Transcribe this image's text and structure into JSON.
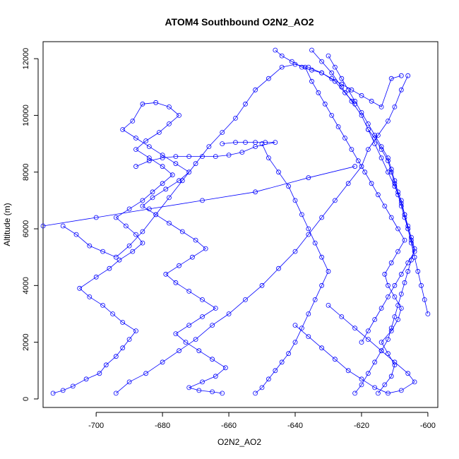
{
  "chart_data": {
    "type": "line",
    "title": "ATOM4 Southbound O2N2_AO2",
    "xlabel": "O2N2_AO2",
    "ylabel": "Altitude (m)",
    "xlim": [
      -716,
      -597
    ],
    "ylim": [
      -300,
      12600
    ],
    "x_ticks": [
      -700,
      -680,
      -660,
      -640,
      -620,
      -600
    ],
    "y_ticks": [
      0,
      2000,
      4000,
      6000,
      8000,
      10000,
      12000
    ],
    "grid": false,
    "legend": "none",
    "marker": "open-circle",
    "colors": {
      "series": "#0000ff",
      "axes": "#000000"
    },
    "series": [
      {
        "profile": "left-ascending-arm",
        "x": [
          -713,
          -710,
          -707,
          -703,
          -699,
          -697,
          -694,
          -692,
          -690,
          -688,
          -692,
          -695,
          -698,
          -702,
          -705,
          -700,
          -696,
          -693,
          -689,
          -686,
          -688,
          -691,
          -694,
          -690,
          -686,
          -683,
          -680,
          -677,
          -680,
          -684,
          -688,
          -685,
          -681,
          -678,
          -675,
          -678,
          -682,
          -686,
          -689,
          -692,
          -688,
          -684,
          -680,
          -676,
          -672,
          -675,
          -679,
          -683,
          -686,
          -682,
          -678,
          -674,
          -670,
          -667,
          -671,
          -675,
          -679,
          -676,
          -672,
          -668,
          -664,
          -668,
          -672,
          -676,
          -673,
          -669,
          -665,
          -661,
          -664,
          -668,
          -672,
          -669,
          -665,
          -662
        ],
        "y": [
          200,
          300,
          450,
          700,
          900,
          1200,
          1500,
          1800,
          2100,
          2400,
          2700,
          3000,
          3300,
          3600,
          3900,
          4300,
          4600,
          4900,
          5200,
          5500,
          5800,
          6100,
          6400,
          6700,
          7000,
          7300,
          7600,
          7900,
          8200,
          8500,
          8800,
          9100,
          9400,
          9700,
          10000,
          10300,
          10450,
          10400,
          9800,
          9500,
          9200,
          8900,
          8600,
          8300,
          8000,
          7700,
          7400,
          7100,
          6800,
          6500,
          6200,
          5900,
          5600,
          5300,
          5000,
          4700,
          4400,
          4100,
          3800,
          3500,
          3200,
          2900,
          2600,
          2300,
          2000,
          1700,
          1400,
          1100,
          800,
          600,
          400,
          300,
          250,
          200
        ]
      },
      {
        "profile": "left-mid-crossing",
        "x": [
          -694,
          -690,
          -685,
          -680,
          -675,
          -670,
          -665,
          -660,
          -655,
          -650,
          -645,
          -640,
          -636,
          -632,
          -628,
          -624,
          -620,
          -618,
          -615,
          -612,
          -610,
          -608,
          -606
        ],
        "y": [
          200,
          600,
          900,
          1300,
          1700,
          2100,
          2600,
          3000,
          3500,
          4000,
          4600,
          5200,
          5800,
          6400,
          7000,
          7600,
          8200,
          8800,
          9300,
          9800,
          10300,
          10900,
          11400
        ]
      },
      {
        "profile": "upper-left-arc",
        "x": [
          -710,
          -706,
          -702,
          -698,
          -694,
          -690,
          -686,
          -682,
          -678,
          -674,
          -670,
          -666,
          -662,
          -658,
          -655,
          -652,
          -648,
          -644,
          -640,
          -636,
          -632,
          -628,
          -625,
          -622
        ],
        "y": [
          6100,
          5800,
          5400,
          5200,
          5000,
          5400,
          5900,
          6500,
          7100,
          7700,
          8300,
          8900,
          9400,
          9900,
          10400,
          10900,
          11300,
          11700,
          11800,
          11700,
          11500,
          11200,
          10800,
          10400
        ]
      },
      {
        "profile": "upper-left-shelf",
        "x": [
          -662,
          -658,
          -655,
          -652,
          -649,
          -646,
          -652,
          -656,
          -660,
          -664,
          -668,
          -672,
          -676,
          -680,
          -684,
          -688
        ],
        "y": [
          9000,
          9050,
          9050,
          9050,
          9050,
          9050,
          8900,
          8700,
          8600,
          8550,
          8550,
          8550,
          8550,
          8500,
          8400,
          8200
        ]
      },
      {
        "profile": "center-descent",
        "x": [
          -650,
          -648,
          -645,
          -642,
          -640,
          -638,
          -636,
          -634,
          -632,
          -630,
          -632,
          -634,
          -636,
          -638,
          -640,
          -642,
          -644,
          -646,
          -648,
          -650,
          -652
        ],
        "y": [
          9000,
          8500,
          8000,
          7500,
          7000,
          6500,
          6000,
          5500,
          5000,
          4500,
          4000,
          3500,
          3000,
          2500,
          2000,
          1600,
          1300,
          1000,
          700,
          400,
          200
        ]
      },
      {
        "profile": "center-left-link",
        "x": [
          -716,
          -700,
          -684,
          -668,
          -652,
          -636,
          -622
        ],
        "y": [
          6100,
          6400,
          6700,
          7000,
          7300,
          7800,
          8200
        ]
      },
      {
        "profile": "right-column-a",
        "x": [
          -615,
          -613,
          -611,
          -610,
          -612,
          -614,
          -611,
          -609,
          -608,
          -610,
          -612,
          -613,
          -611,
          -609,
          -607,
          -609,
          -611,
          -613,
          -615,
          -617,
          -619,
          -621,
          -623,
          -625,
          -627,
          -629,
          -631,
          -633,
          -635,
          -637
        ],
        "y": [
          200,
          500,
          800,
          1200,
          1600,
          2000,
          2400,
          2800,
          3200,
          3600,
          4000,
          4400,
          4800,
          5200,
          5600,
          6000,
          6400,
          6800,
          7200,
          7600,
          8000,
          8400,
          8800,
          9200,
          9600,
          10000,
          10400,
          10800,
          11200,
          11700
        ]
      },
      {
        "profile": "right-column-b",
        "x": [
          -622,
          -620,
          -618,
          -616,
          -614,
          -612,
          -611,
          -610,
          -609,
          -608,
          -607,
          -606,
          -605,
          -604,
          -605,
          -606,
          -607,
          -608,
          -609,
          -610,
          -611,
          -612,
          -614,
          -616,
          -618,
          -620,
          -622,
          -624,
          -626,
          -628,
          -630
        ],
        "y": [
          200,
          500,
          900,
          1300,
          1700,
          2100,
          2500,
          2900,
          3300,
          3700,
          4100,
          4500,
          4900,
          5300,
          5700,
          6100,
          6500,
          6900,
          7300,
          7700,
          8100,
          8500,
          8900,
          9300,
          9700,
          10100,
          10500,
          10900,
          11300,
          11700,
          12100
        ]
      },
      {
        "profile": "right-column-c",
        "x": [
          -635,
          -632,
          -629,
          -626,
          -623,
          -620,
          -618,
          -616,
          -614,
          -612,
          -610,
          -608,
          -607,
          -606,
          -605,
          -604,
          -603,
          -602,
          -601,
          -600
        ],
        "y": [
          12300,
          11900,
          11500,
          11000,
          10500,
          10000,
          9500,
          9000,
          8500,
          8000,
          7500,
          7000,
          6500,
          6000,
          5500,
          5000,
          4500,
          4000,
          3500,
          3000
        ]
      },
      {
        "profile": "right-column-d",
        "x": [
          -618,
          -616,
          -614,
          -612,
          -611,
          -610,
          -609,
          -608,
          -607,
          -606,
          -605,
          -604,
          -606,
          -608,
          -610,
          -612,
          -614,
          -616,
          -618,
          -620
        ],
        "y": [
          9500,
          9200,
          8800,
          8400,
          8000,
          7600,
          7200,
          6800,
          6400,
          6000,
          5600,
          5200,
          4800,
          4400,
          4000,
          3600,
          3200,
          2800,
          2400,
          2000
        ]
      },
      {
        "profile": "top-right-cluster",
        "x": [
          -646,
          -644,
          -641,
          -638,
          -635,
          -632,
          -629,
          -626,
          -623,
          -620,
          -617,
          -614,
          -611,
          -608
        ],
        "y": [
          12300,
          12100,
          11900,
          11700,
          11600,
          11500,
          11300,
          11100,
          10900,
          10700,
          10500,
          10300,
          11300,
          11400
        ]
      },
      {
        "profile": "right-lower-spread",
        "x": [
          -640,
          -636,
          -632,
          -628,
          -624,
          -620,
          -616,
          -612,
          -608,
          -604,
          -606,
          -610,
          -614,
          -618,
          -622,
          -626,
          -630
        ],
        "y": [
          2600,
          2200,
          1800,
          1400,
          1000,
          700,
          400,
          200,
          300,
          600,
          900,
          1300,
          1700,
          2100,
          2500,
          2900,
          3300
        ]
      }
    ]
  }
}
